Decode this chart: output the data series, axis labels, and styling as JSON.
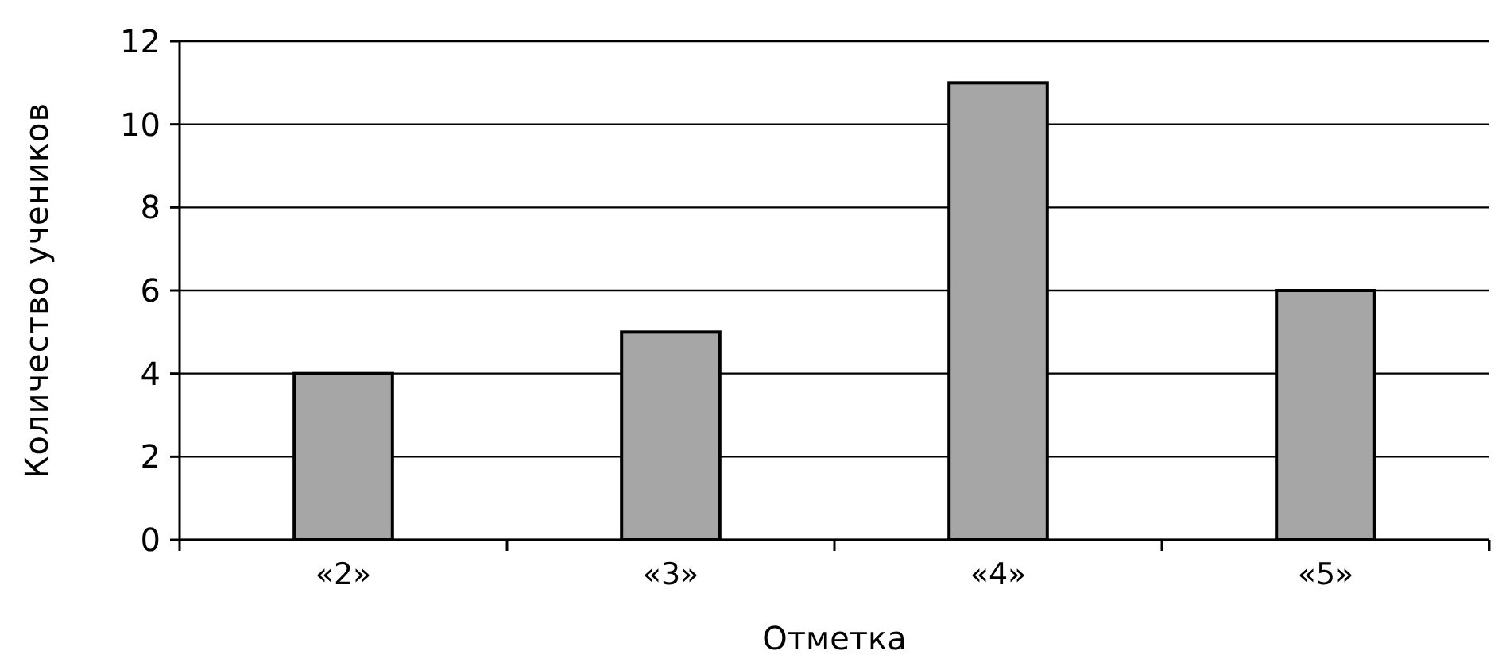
{
  "chart_data": {
    "type": "bar",
    "xlabel": "Отметка",
    "ylabel": "Количество учеников",
    "categories": [
      "«2»",
      "«3»",
      "«4»",
      "«5»"
    ],
    "values": [
      4,
      5,
      11,
      6
    ],
    "color": "#a6a6a6",
    "ylim": [
      0,
      12
    ],
    "yticks": [
      0,
      2,
      4,
      6,
      8,
      10,
      12
    ],
    "grid": "y"
  }
}
